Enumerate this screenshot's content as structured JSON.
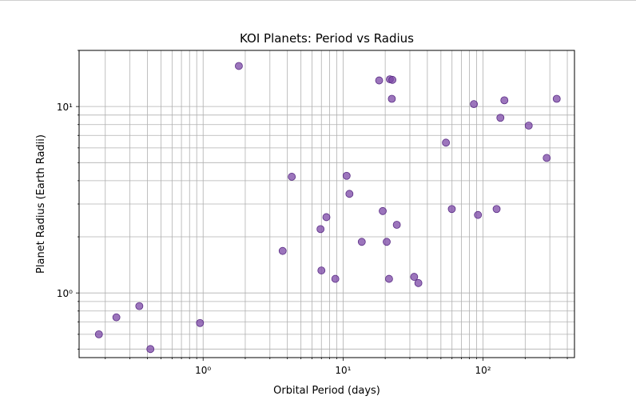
{
  "chart_data": {
    "type": "scatter",
    "title": "KOI Planets: Period vs Radius",
    "xlabel": "Orbital Period (days)",
    "ylabel": "Planet Radius (Earth Radii)",
    "xscale": "log",
    "yscale": "log",
    "xlim": [
      0.13,
      450
    ],
    "ylim": [
      0.45,
      20
    ],
    "xticks": [
      {
        "value": 1,
        "label": "10⁰"
      },
      {
        "value": 10,
        "label": "10¹"
      },
      {
        "value": 100,
        "label": "10²"
      }
    ],
    "yticks": [
      {
        "value": 1,
        "label": "10⁰"
      },
      {
        "value": 10,
        "label": "10¹"
      }
    ],
    "grid": "major and minor, both axes",
    "marker_color": "#7b47a6",
    "points": [
      {
        "x": 0.18,
        "y": 0.6
      },
      {
        "x": 0.24,
        "y": 0.74
      },
      {
        "x": 0.35,
        "y": 0.85
      },
      {
        "x": 0.42,
        "y": 0.5
      },
      {
        "x": 0.95,
        "y": 0.69
      },
      {
        "x": 1.8,
        "y": 16.5
      },
      {
        "x": 3.7,
        "y": 1.68
      },
      {
        "x": 4.3,
        "y": 4.2
      },
      {
        "x": 6.9,
        "y": 2.2
      },
      {
        "x": 7.0,
        "y": 1.32
      },
      {
        "x": 7.6,
        "y": 2.55
      },
      {
        "x": 8.8,
        "y": 1.19
      },
      {
        "x": 10.6,
        "y": 4.25
      },
      {
        "x": 11.1,
        "y": 3.4
      },
      {
        "x": 13.6,
        "y": 1.88
      },
      {
        "x": 18.1,
        "y": 13.8
      },
      {
        "x": 19.2,
        "y": 2.75
      },
      {
        "x": 20.5,
        "y": 1.88
      },
      {
        "x": 21.3,
        "y": 1.19
      },
      {
        "x": 21.6,
        "y": 14.0
      },
      {
        "x": 22.5,
        "y": 13.9
      },
      {
        "x": 22.3,
        "y": 11.0
      },
      {
        "x": 24.2,
        "y": 2.32
      },
      {
        "x": 32.2,
        "y": 1.22
      },
      {
        "x": 34.5,
        "y": 1.13
      },
      {
        "x": 54.3,
        "y": 6.4
      },
      {
        "x": 59.8,
        "y": 2.82
      },
      {
        "x": 86.0,
        "y": 10.3
      },
      {
        "x": 92.0,
        "y": 2.62
      },
      {
        "x": 125.0,
        "y": 2.82
      },
      {
        "x": 133.0,
        "y": 8.7
      },
      {
        "x": 142.0,
        "y": 10.8
      },
      {
        "x": 212.0,
        "y": 7.9
      },
      {
        "x": 285.0,
        "y": 5.3
      },
      {
        "x": 336.0,
        "y": 11.0
      }
    ]
  }
}
